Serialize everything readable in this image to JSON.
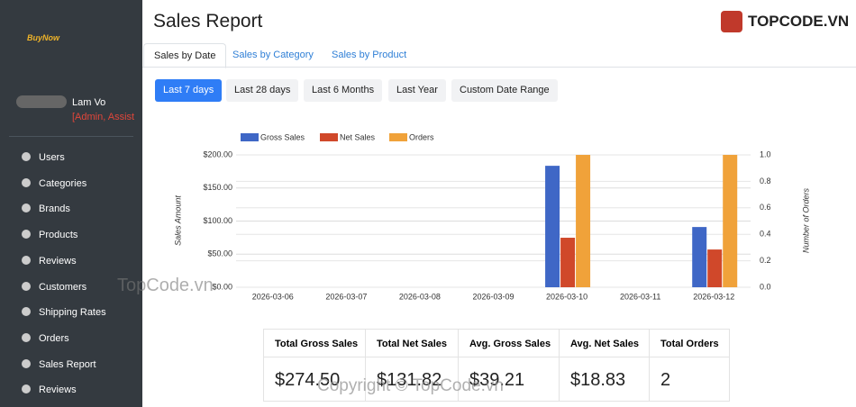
{
  "sidebar": {
    "logo": "BuyNow",
    "user_name": "Lam Vo",
    "user_roles": "[Admin, Assist",
    "menu": [
      "Users",
      "Categories",
      "Brands",
      "Products",
      "Reviews",
      "Customers",
      "Shipping Rates",
      "Orders",
      "Sales Report",
      "Reviews"
    ]
  },
  "header": {
    "title": "Sales Report"
  },
  "tabs": [
    "Sales by Date",
    "Sales by Category",
    "Sales by Product"
  ],
  "ranges": [
    "Last 7 days",
    "Last 28 days",
    "Last 6 Months",
    "Last Year",
    "Custom Date Range"
  ],
  "chart_data": {
    "type": "bar",
    "categories": [
      "2026-03-06",
      "2026-03-07",
      "2026-03-08",
      "2026-03-09",
      "2026-03-10",
      "2026-03-11",
      "2026-03-12"
    ],
    "series": [
      {
        "name": "Gross Sales",
        "color": "#3f67c6",
        "values": [
          0,
          0,
          0,
          0,
          183.5,
          0,
          91
        ]
      },
      {
        "name": "Net Sales",
        "color": "#d0482a",
        "values": [
          0,
          0,
          0,
          0,
          74.8,
          0,
          57.02
        ]
      },
      {
        "name": "Orders",
        "color": "#f0a23a",
        "axis": "y2",
        "values": [
          0,
          0,
          0,
          0,
          1,
          0,
          1
        ]
      }
    ],
    "y_label": "Sales Amount",
    "y2_label": "Number of Orders",
    "ylim": [
      0,
      200
    ],
    "yticks": [
      {
        "value": 0,
        "label": "$0.00"
      },
      {
        "value": 50,
        "label": "$50.00"
      },
      {
        "value": 100,
        "label": "$100.00"
      },
      {
        "value": 150,
        "label": "$150.00"
      },
      {
        "value": 200,
        "label": "$200.00"
      }
    ],
    "y2lim": [
      0,
      1
    ],
    "y2ticks": [
      {
        "value": 0,
        "label": "0.0"
      },
      0.2,
      0.4,
      0.6,
      0.8,
      {
        "value": 1,
        "label": "1.0"
      }
    ],
    "grid": true,
    "legend": "top"
  },
  "summary": {
    "headers": [
      "Total Gross Sales",
      "Total Net Sales",
      "Avg. Gross Sales",
      "Avg. Net Sales",
      "Total Orders"
    ],
    "values": [
      "$274.50",
      "$131.82",
      "$39.21",
      "$18.83",
      "2"
    ]
  },
  "watermarks": [
    "TOPCODE.VN",
    "TopCode.vn",
    "Copyright © TopCode.vn"
  ]
}
